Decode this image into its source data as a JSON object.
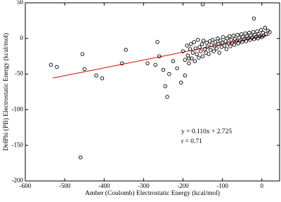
{
  "chart_data": {
    "type": "scatter",
    "x_label": "Amber (Coulomb) Electrostatic Energy (kcal/mol)",
    "y_label": "DelPhi (PB) Electrostatic Energy (kcal/mol)",
    "annotations": [
      "y = 0.110x + 2.725",
      "r = 0.71"
    ],
    "trendline": {
      "slope": 0.11,
      "intercept": 2.725,
      "xrange": [
        -530,
        20
      ],
      "color": "#e00000"
    },
    "marker_color": "#000000",
    "xlim": [
      -600,
      45
    ],
    "ylim": [
      -200,
      50
    ],
    "xticks": [
      -600,
      -500,
      -400,
      -300,
      -200,
      -100,
      0
    ],
    "yticks": [
      -200,
      -150,
      -100,
      -50,
      0,
      50
    ],
    "x": [
      -535,
      -520,
      -460,
      -455,
      -450,
      -420,
      -405,
      -355,
      -345,
      -290,
      -270,
      -265,
      -260,
      -250,
      -245,
      -240,
      -235,
      -225,
      -215,
      -205,
      -195,
      -185,
      -150,
      -20,
      -200,
      -195,
      -190,
      -188,
      -185,
      -182,
      -180,
      -178,
      -175,
      -172,
      -170,
      -168,
      -165,
      -162,
      -160,
      -158,
      -155,
      -152,
      -150,
      -148,
      -145,
      -142,
      -140,
      -138,
      -135,
      -132,
      -130,
      -128,
      -125,
      -122,
      -120,
      -118,
      -115,
      -112,
      -110,
      -108,
      -105,
      -102,
      -100,
      -98,
      -95,
      -92,
      -90,
      -88,
      -85,
      -82,
      -80,
      -78,
      -75,
      -72,
      -70,
      -68,
      -65,
      -62,
      -60,
      -58,
      -55,
      -52,
      -50,
      -48,
      -45,
      -42,
      -40,
      -38,
      -35,
      -32,
      -30,
      -28,
      -25,
      -22,
      -20,
      -18,
      -15,
      -12,
      -10,
      -8,
      -5,
      -2,
      0,
      3,
      5,
      8,
      10,
      15,
      20
    ],
    "y": [
      -37,
      -40,
      -167,
      -22,
      -43,
      -52,
      -56,
      -35,
      -16,
      -35,
      -37,
      -5,
      -25,
      -44,
      -67,
      -82,
      -50,
      -32,
      -42,
      -62,
      -52,
      -28,
      48,
      28,
      -18,
      -30,
      -10,
      -24,
      -35,
      -15,
      -8,
      -28,
      -20,
      -5,
      -32,
      -14,
      -22,
      -2,
      -27,
      -12,
      -18,
      -8,
      -25,
      -3,
      -15,
      -20,
      -6,
      -12,
      -22,
      -4,
      -16,
      -9,
      -2,
      -18,
      -11,
      -5,
      -14,
      0,
      -8,
      -20,
      -3,
      -12,
      -6,
      2,
      -10,
      -4,
      -15,
      0,
      -7,
      3,
      -11,
      -2,
      -6,
      4,
      -9,
      -1,
      -4,
      5,
      -7,
      1,
      -3,
      6,
      -5,
      2,
      -1,
      7,
      -4,
      3,
      0,
      8,
      -2,
      4,
      1,
      9,
      -1,
      5,
      2,
      10,
      0,
      6,
      3,
      12,
      2,
      8,
      4,
      15,
      6,
      11,
      9
    ]
  }
}
